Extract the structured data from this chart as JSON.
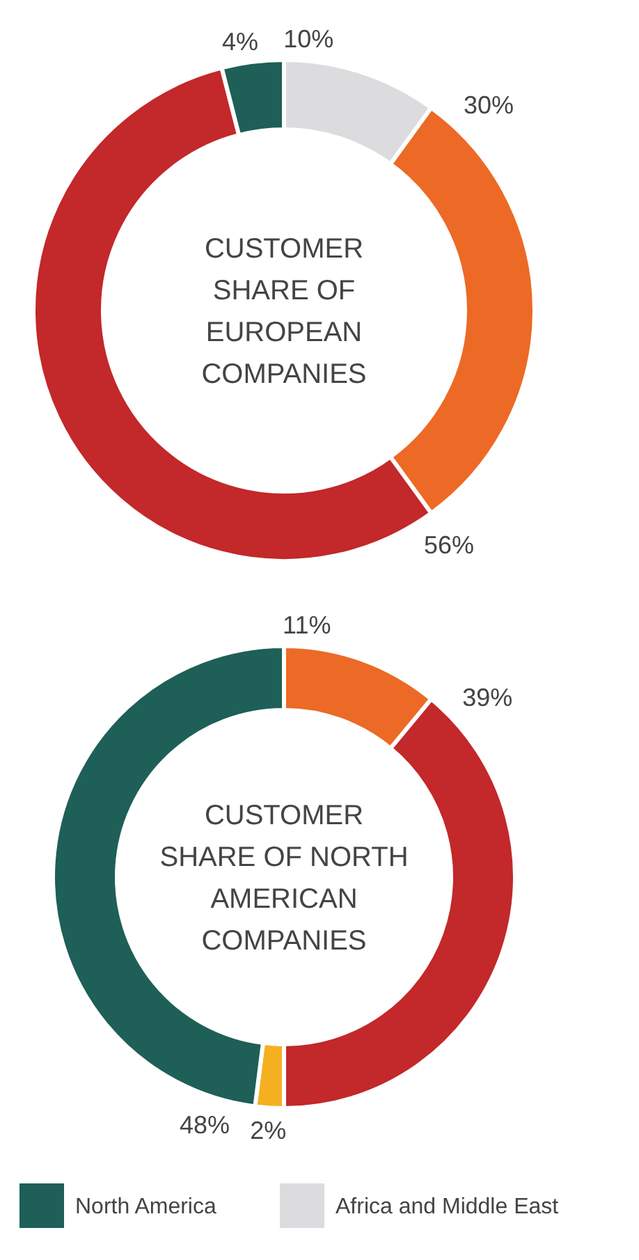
{
  "chart_data": [
    {
      "type": "donut",
      "title": "CUSTOMER\nSHARE OF\nEUROPEAN\nCOMPANIES",
      "categories": [
        "Africa and Middle East",
        null,
        null,
        "North America"
      ],
      "values": [
        10,
        30,
        56,
        4
      ],
      "value_labels": [
        "10%",
        "30%",
        "56%",
        "4%"
      ],
      "colors": [
        "#dcdcde",
        "#ec6a25",
        "#c3282a",
        "#1e5f57"
      ],
      "legend": "bottom"
    },
    {
      "type": "donut",
      "title": "CUSTOMER\nSHARE OF NORTH\nAMERICAN\nCOMPANIES",
      "categories": [
        null,
        null,
        null,
        null
      ],
      "values": [
        11,
        39,
        2,
        48
      ],
      "value_labels": [
        "11%",
        "39%",
        "2%",
        "48%"
      ],
      "colors": [
        "#ec6a25",
        "#c3282a",
        "#f5b022",
        "#1e5f57"
      ]
    }
  ]
}
